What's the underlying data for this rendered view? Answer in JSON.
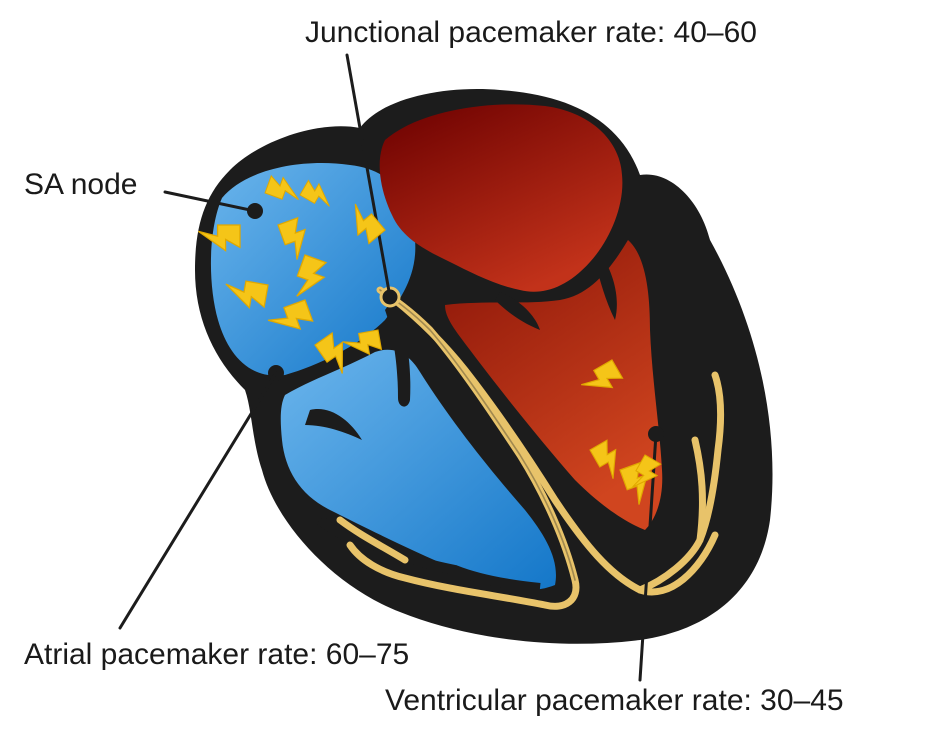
{
  "labels": {
    "junctional": "Junctional pacemaker rate: 40–60",
    "sa_node": "SA node",
    "atrial": "Atrial pacemaker rate: 60–75",
    "ventricular": "Ventricular pacemaker rate: 30–45"
  },
  "colors": {
    "outline": "#1c1c1c",
    "right_side_blue": "#3d9be0",
    "left_side_red": "#a11c10",
    "conduction_gold": "#e8c36a",
    "lightning_yellow": "#f5c518"
  }
}
